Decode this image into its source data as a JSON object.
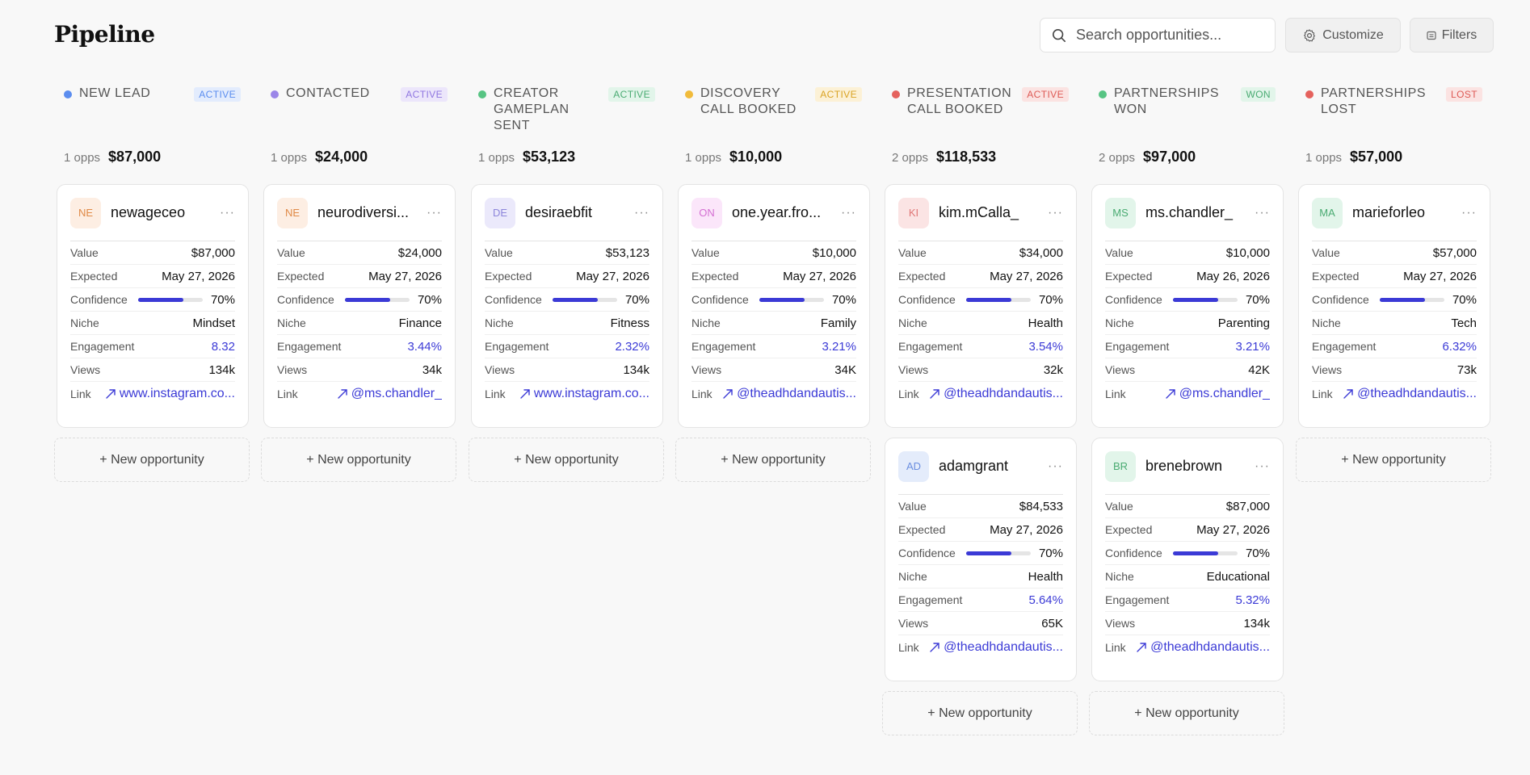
{
  "header": {
    "title": "Pipeline",
    "search_placeholder": "Search opportunities...",
    "customize_label": "Customize",
    "filters_label": "Filters"
  },
  "labels": {
    "value": "Value",
    "expected": "Expected",
    "confidence": "Confidence",
    "niche": "Niche",
    "engagement": "Engagement",
    "views": "Views",
    "link": "Link",
    "new_opportunity": "+ New opportunity",
    "more": "···"
  },
  "columns": [
    {
      "name": "NEW LEAD",
      "badge": "ACTIVE",
      "dot": "#5b8def",
      "badge_bg": "#e3ecfd",
      "badge_fg": "#5b8def",
      "opps": "1 opps",
      "total": "$87,000",
      "cards": [
        {
          "initials": "NE",
          "av_bg": "#fdeee3",
          "av_fg": "#e08a47",
          "name": "newageceo",
          "value": "$87,000",
          "expected": "May 27, 2026",
          "confidence": 70,
          "confidence_text": "70%",
          "niche": "Mindset",
          "engagement": "8.32",
          "views": "134k",
          "link": "www.instagram.co..."
        }
      ]
    },
    {
      "name": "CONTACTED",
      "badge": "ACTIVE",
      "dot": "#9b86e8",
      "badge_bg": "#ece6fb",
      "badge_fg": "#8f76e0",
      "opps": "1 opps",
      "total": "$24,000",
      "cards": [
        {
          "initials": "NE",
          "av_bg": "#fdeee3",
          "av_fg": "#e08a47",
          "name": "neurodiversi...",
          "value": "$24,000",
          "expected": "May 27, 2026",
          "confidence": 70,
          "confidence_text": "70%",
          "niche": "Finance",
          "engagement": "3.44%",
          "views": "34k",
          "link": "@ms.chandler_"
        }
      ]
    },
    {
      "name": "CREATOR GAMEPLAN SENT",
      "badge": "ACTIVE",
      "dot": "#57c483",
      "badge_bg": "#e2f5ea",
      "badge_fg": "#4aab72",
      "opps": "1 opps",
      "total": "$53,123",
      "cards": [
        {
          "initials": "DE",
          "av_bg": "#ebe9fb",
          "av_fg": "#8d86db",
          "name": "desiraebfit",
          "value": "$53,123",
          "expected": "May 27, 2026",
          "confidence": 70,
          "confidence_text": "70%",
          "niche": "Fitness",
          "engagement": "2.32%",
          "views": "134k",
          "link": "www.instagram.co..."
        }
      ]
    },
    {
      "name": "DISCOVERY CALL BOOKED",
      "badge": "ACTIVE",
      "dot": "#f1bb3b",
      "badge_bg": "#fcf1d6",
      "badge_fg": "#d9a324",
      "opps": "1 opps",
      "total": "$10,000",
      "cards": [
        {
          "initials": "ON",
          "av_bg": "#fbe6fa",
          "av_fg": "#d46fd2",
          "name": "one.year.fro...",
          "value": "$10,000",
          "expected": "May 27, 2026",
          "confidence": 70,
          "confidence_text": "70%",
          "niche": "Family",
          "engagement": "3.21%",
          "views": "34K",
          "link": "@theadhdandautis..."
        }
      ]
    },
    {
      "name": "PRESENTATION CALL BOOKED",
      "badge": "ACTIVE",
      "dot": "#e5625d",
      "badge_bg": "#fbe3e2",
      "badge_fg": "#dd5a55",
      "opps": "2 opps",
      "total": "$118,533",
      "cards": [
        {
          "initials": "KI",
          "av_bg": "#fbe4e4",
          "av_fg": "#e07676",
          "name": "kim.mCalla_",
          "value": "$34,000",
          "expected": "May 27, 2026",
          "confidence": 70,
          "confidence_text": "70%",
          "niche": "Health",
          "engagement": "3.54%",
          "views": "32k",
          "link": "@theadhdandautis..."
        },
        {
          "initials": "AD",
          "av_bg": "#e4ecfb",
          "av_fg": "#6b8fe0",
          "name": "adamgrant",
          "value": "$84,533",
          "expected": "May 27, 2026",
          "confidence": 70,
          "confidence_text": "70%",
          "niche": "Health",
          "engagement": "5.64%",
          "views": "65K",
          "link": "@theadhdandautis..."
        }
      ]
    },
    {
      "name": "PARTNERSHIPS WON",
      "badge": "WON",
      "dot": "#57c483",
      "badge_bg": "#e2f5ea",
      "badge_fg": "#4aab72",
      "opps": "2 opps",
      "total": "$97,000",
      "cards": [
        {
          "initials": "MS",
          "av_bg": "#e2f5ea",
          "av_fg": "#4aab72",
          "name": "ms.chandler_",
          "value": "$10,000",
          "expected": "May 26, 2026",
          "confidence": 70,
          "confidence_text": "70%",
          "niche": "Parenting",
          "engagement": "3.21%",
          "views": "42K",
          "link": "@ms.chandler_"
        },
        {
          "initials": "BR",
          "av_bg": "#e2f5ea",
          "av_fg": "#4aab72",
          "name": "brenebrown",
          "value": "$87,000",
          "expected": "May 27, 2026",
          "confidence": 70,
          "confidence_text": "70%",
          "niche": "Educational",
          "engagement": "5.32%",
          "views": "134k",
          "link": "@theadhdandautis..."
        }
      ]
    },
    {
      "name": "PARTNERSHIPS LOST",
      "badge": "LOST",
      "dot": "#e5625d",
      "badge_bg": "#fbe3e2",
      "badge_fg": "#dd5a55",
      "opps": "1 opps",
      "total": "$57,000",
      "cards": [
        {
          "initials": "MA",
          "av_bg": "#e2f5ea",
          "av_fg": "#4aab72",
          "name": "marieforleo",
          "value": "$57,000",
          "expected": "May 27, 2026",
          "confidence": 70,
          "confidence_text": "70%",
          "niche": "Tech",
          "engagement": "6.32%",
          "views": "73k",
          "link": "@theadhdandautis..."
        }
      ]
    }
  ]
}
